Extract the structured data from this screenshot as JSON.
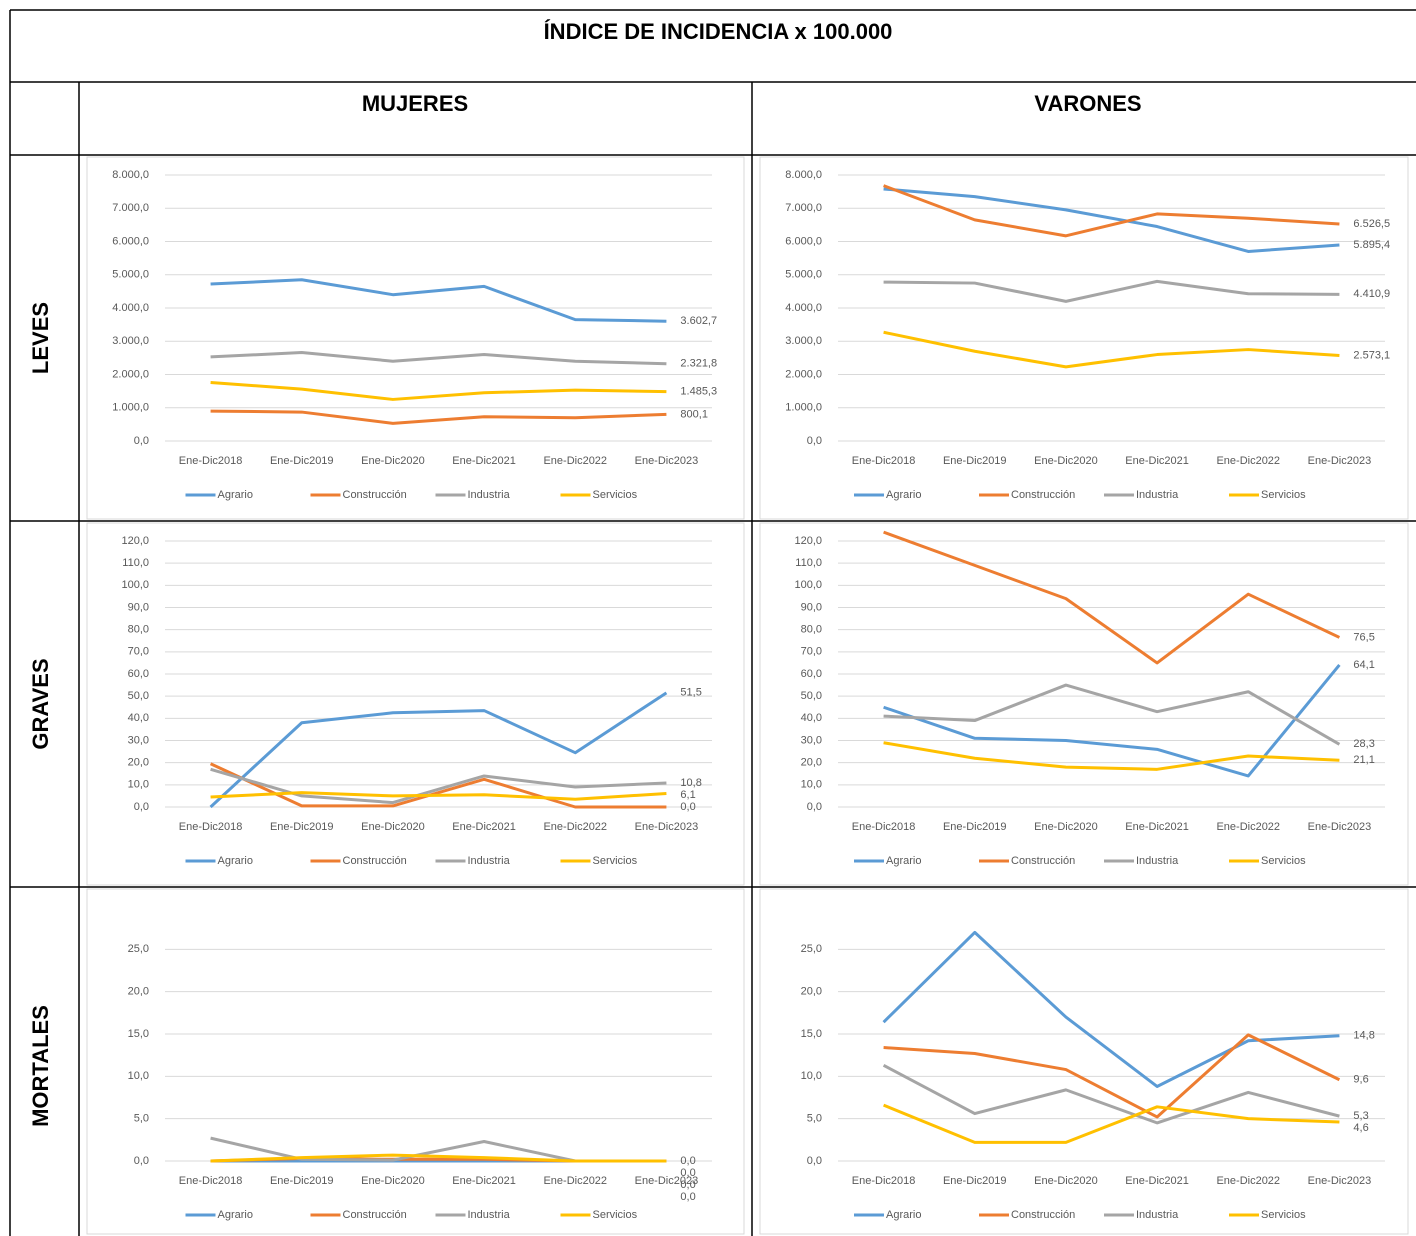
{
  "table": {
    "title": "ÍNDICE DE INCIDENCIA x 100.000",
    "columns": [
      "MUJERES",
      "VARONES"
    ],
    "rows": [
      "LEVES",
      "GRAVES",
      "MORTALES"
    ]
  },
  "chart_data": [
    {
      "type": "line",
      "categories": [
        "Ene-Dic2018",
        "Ene-Dic2019",
        "Ene-Dic2020",
        "Ene-Dic2021",
        "Ene-Dic2022",
        "Ene-Dic2023"
      ],
      "ylim": [
        0,
        8000
      ],
      "yticks": [
        {
          "value": 0,
          "label": "0,0"
        },
        {
          "value": 1000,
          "label": "1.000,0"
        },
        {
          "value": 2000,
          "label": "2.000,0"
        },
        {
          "value": 3000,
          "label": "3.000,0"
        },
        {
          "value": 4000,
          "label": "4.000,0"
        },
        {
          "value": 5000,
          "label": "5.000,0"
        },
        {
          "value": 6000,
          "label": "6.000,0"
        },
        {
          "value": 7000,
          "label": "7.000,0"
        },
        {
          "value": 8000,
          "label": "8.000,0"
        }
      ],
      "grid": true,
      "legend": "bottom",
      "series": [
        {
          "name": "Agrario",
          "color": "#5b9bd5",
          "values": [
            4720,
            4850,
            4400,
            4650,
            3650,
            3602.7
          ],
          "value_labels": [
            null,
            null,
            null,
            null,
            null,
            "3.602,7"
          ]
        },
        {
          "name": "Construcción",
          "color": "#ed7d31",
          "values": [
            900,
            870,
            530,
            730,
            700,
            800.1
          ],
          "value_labels": [
            null,
            null,
            null,
            null,
            null,
            "800,1"
          ]
        },
        {
          "name": "Industria",
          "color": "#a5a5a5",
          "values": [
            2530,
            2660,
            2400,
            2600,
            2400,
            2321.8
          ],
          "value_labels": [
            null,
            null,
            null,
            null,
            null,
            "2.321,8"
          ]
        },
        {
          "name": "Servicios",
          "color": "#ffc000",
          "values": [
            1760,
            1560,
            1250,
            1450,
            1530,
            1485.3
          ],
          "value_labels": [
            null,
            null,
            null,
            null,
            null,
            "1.485,3"
          ]
        }
      ]
    },
    {
      "type": "line",
      "categories": [
        "Ene-Dic2018",
        "Ene-Dic2019",
        "Ene-Dic2020",
        "Ene-Dic2021",
        "Ene-Dic2022",
        "Ene-Dic2023"
      ],
      "ylim": [
        0,
        8000
      ],
      "yticks": [
        {
          "value": 0,
          "label": "0,0"
        },
        {
          "value": 1000,
          "label": "1.000,0"
        },
        {
          "value": 2000,
          "label": "2.000,0"
        },
        {
          "value": 3000,
          "label": "3.000,0"
        },
        {
          "value": 4000,
          "label": "4.000,0"
        },
        {
          "value": 5000,
          "label": "5.000,0"
        },
        {
          "value": 6000,
          "label": "6.000,0"
        },
        {
          "value": 7000,
          "label": "7.000,0"
        },
        {
          "value": 8000,
          "label": "8.000,0"
        }
      ],
      "grid": true,
      "legend": "bottom",
      "series": [
        {
          "name": "Agrario",
          "color": "#5b9bd5",
          "values": [
            7580,
            7350,
            6950,
            6450,
            5700,
            5895.4
          ],
          "value_labels": [
            null,
            null,
            null,
            null,
            null,
            "5.895,4"
          ]
        },
        {
          "name": "Construcción",
          "color": "#ed7d31",
          "values": [
            7680,
            6650,
            6170,
            6830,
            6700,
            6526.5
          ],
          "value_labels": [
            null,
            null,
            null,
            null,
            null,
            "6.526,5"
          ]
        },
        {
          "name": "Industria",
          "color": "#a5a5a5",
          "values": [
            4780,
            4750,
            4200,
            4800,
            4430,
            4410.9
          ],
          "value_labels": [
            null,
            null,
            null,
            null,
            null,
            "4.410,9"
          ]
        },
        {
          "name": "Servicios",
          "color": "#ffc000",
          "values": [
            3270,
            2700,
            2230,
            2600,
            2750,
            2573.1
          ],
          "value_labels": [
            null,
            null,
            null,
            null,
            null,
            "2.573,1"
          ]
        }
      ]
    },
    {
      "type": "line",
      "categories": [
        "Ene-Dic2018",
        "Ene-Dic2019",
        "Ene-Dic2020",
        "Ene-Dic2021",
        "Ene-Dic2022",
        "Ene-Dic2023"
      ],
      "ylim": [
        0,
        120
      ],
      "yticks": [
        {
          "value": 0,
          "label": "0,0"
        },
        {
          "value": 10,
          "label": "10,0"
        },
        {
          "value": 20,
          "label": "20,0"
        },
        {
          "value": 30,
          "label": "30,0"
        },
        {
          "value": 40,
          "label": "40,0"
        },
        {
          "value": 50,
          "label": "50,0"
        },
        {
          "value": 60,
          "label": "60,0"
        },
        {
          "value": 70,
          "label": "70,0"
        },
        {
          "value": 80,
          "label": "80,0"
        },
        {
          "value": 90,
          "label": "90,0"
        },
        {
          "value": 100,
          "label": "100,0"
        },
        {
          "value": 110,
          "label": "110,0"
        },
        {
          "value": 120,
          "label": "120,0"
        }
      ],
      "grid": true,
      "legend": "bottom",
      "series": [
        {
          "name": "Agrario",
          "color": "#5b9bd5",
          "values": [
            0,
            38,
            42.5,
            43.5,
            24.5,
            51.5
          ],
          "value_labels": [
            null,
            null,
            null,
            null,
            null,
            "51,5"
          ]
        },
        {
          "name": "Construcción",
          "color": "#ed7d31",
          "values": [
            19.5,
            0.5,
            0.5,
            12.5,
            0,
            0
          ],
          "value_labels": [
            null,
            null,
            null,
            null,
            null,
            "0,0"
          ]
        },
        {
          "name": "Industria",
          "color": "#a5a5a5",
          "values": [
            17,
            5,
            2,
            14,
            9,
            10.8
          ],
          "value_labels": [
            null,
            null,
            null,
            null,
            null,
            "10,8"
          ]
        },
        {
          "name": "Servicios",
          "color": "#ffc000",
          "values": [
            4.5,
            6.5,
            5,
            5.5,
            3.5,
            6.1
          ],
          "value_labels": [
            null,
            null,
            null,
            null,
            null,
            "6,1"
          ]
        }
      ]
    },
    {
      "type": "line",
      "categories": [
        "Ene-Dic2018",
        "Ene-Dic2019",
        "Ene-Dic2020",
        "Ene-Dic2021",
        "Ene-Dic2022",
        "Ene-Dic2023"
      ],
      "ylim": [
        0,
        120
      ],
      "yticks": [
        {
          "value": 0,
          "label": "0,0"
        },
        {
          "value": 10,
          "label": "10,0"
        },
        {
          "value": 20,
          "label": "20,0"
        },
        {
          "value": 30,
          "label": "30,0"
        },
        {
          "value": 40,
          "label": "40,0"
        },
        {
          "value": 50,
          "label": "50,0"
        },
        {
          "value": 60,
          "label": "60,0"
        },
        {
          "value": 70,
          "label": "70,0"
        },
        {
          "value": 80,
          "label": "80,0"
        },
        {
          "value": 90,
          "label": "90,0"
        },
        {
          "value": 100,
          "label": "100,0"
        },
        {
          "value": 110,
          "label": "110,0"
        },
        {
          "value": 120,
          "label": "120,0"
        }
      ],
      "grid": true,
      "legend": "bottom",
      "series": [
        {
          "name": "Agrario",
          "color": "#5b9bd5",
          "values": [
            45,
            31,
            30,
            26,
            14,
            64.1
          ],
          "value_labels": [
            null,
            null,
            null,
            null,
            null,
            "64,1"
          ]
        },
        {
          "name": "Construcción",
          "color": "#ed7d31",
          "values": [
            124,
            109,
            94,
            65,
            96,
            76.5
          ],
          "value_labels": [
            null,
            null,
            null,
            null,
            null,
            "76,5"
          ]
        },
        {
          "name": "Industria",
          "color": "#a5a5a5",
          "values": [
            41,
            39,
            55,
            43,
            52,
            28.3
          ],
          "value_labels": [
            null,
            null,
            null,
            null,
            null,
            "28,3"
          ]
        },
        {
          "name": "Servicios",
          "color": "#ffc000",
          "values": [
            29,
            22,
            18,
            17,
            23,
            21.1
          ],
          "value_labels": [
            null,
            null,
            null,
            null,
            null,
            "21,1"
          ]
        }
      ]
    },
    {
      "type": "line",
      "categories": [
        "Ene-Dic2018",
        "Ene-Dic2019",
        "Ene-Dic2020",
        "Ene-Dic2021",
        "Ene-Dic2022",
        "Ene-Dic2023"
      ],
      "ylim": [
        0,
        30
      ],
      "yticks": [
        {
          "value": 0,
          "label": "0,0"
        },
        {
          "value": 5,
          "label": "5,0"
        },
        {
          "value": 10,
          "label": "10,0"
        },
        {
          "value": 15,
          "label": "15,0"
        },
        {
          "value": 20,
          "label": "20,0"
        },
        {
          "value": 25,
          "label": "25,0"
        }
      ],
      "grid": true,
      "legend": "bottom",
      "series": [
        {
          "name": "Agrario",
          "color": "#5b9bd5",
          "values": [
            0,
            0,
            0,
            0,
            0,
            0
          ],
          "value_labels": [
            null,
            null,
            null,
            null,
            null,
            "0,0"
          ]
        },
        {
          "name": "Construcción",
          "color": "#ed7d31",
          "values": [
            0,
            0.3,
            0.2,
            0.2,
            0,
            0
          ],
          "value_labels": [
            null,
            null,
            null,
            null,
            null,
            "0,0"
          ]
        },
        {
          "name": "Industria",
          "color": "#a5a5a5",
          "values": [
            2.7,
            0.2,
            0.1,
            2.3,
            0,
            0
          ],
          "value_labels": [
            null,
            null,
            null,
            null,
            null,
            "0,0"
          ]
        },
        {
          "name": "Servicios",
          "color": "#ffc000",
          "values": [
            0,
            0.4,
            0.7,
            0.4,
            0,
            0
          ],
          "value_labels": [
            null,
            null,
            null,
            null,
            null,
            "0,0"
          ]
        }
      ]
    },
    {
      "type": "line",
      "categories": [
        "Ene-Dic2018",
        "Ene-Dic2019",
        "Ene-Dic2020",
        "Ene-Dic2021",
        "Ene-Dic2022",
        "Ene-Dic2023"
      ],
      "ylim": [
        0,
        30
      ],
      "yticks": [
        {
          "value": 0,
          "label": "0,0"
        },
        {
          "value": 5,
          "label": "5,0"
        },
        {
          "value": 10,
          "label": "10,0"
        },
        {
          "value": 15,
          "label": "15,0"
        },
        {
          "value": 20,
          "label": "20,0"
        },
        {
          "value": 25,
          "label": "25,0"
        }
      ],
      "grid": true,
      "legend": "bottom",
      "series": [
        {
          "name": "Agrario",
          "color": "#5b9bd5",
          "values": [
            16.4,
            27,
            17,
            8.8,
            14.2,
            14.8
          ],
          "value_labels": [
            null,
            null,
            null,
            null,
            null,
            "14,8"
          ]
        },
        {
          "name": "Construcción",
          "color": "#ed7d31",
          "values": [
            13.4,
            12.7,
            10.8,
            5.2,
            14.9,
            9.6
          ],
          "value_labels": [
            null,
            null,
            null,
            null,
            null,
            "9,6"
          ]
        },
        {
          "name": "Industria",
          "color": "#a5a5a5",
          "values": [
            11.3,
            5.6,
            8.4,
            4.5,
            8.1,
            5.3
          ],
          "value_labels": [
            null,
            null,
            null,
            null,
            null,
            "5,3"
          ]
        },
        {
          "name": "Servicios",
          "color": "#ffc000",
          "values": [
            6.6,
            2.2,
            2.2,
            6.4,
            5.0,
            4.6
          ],
          "value_labels": [
            null,
            null,
            null,
            null,
            null,
            "4,6"
          ]
        }
      ]
    }
  ]
}
